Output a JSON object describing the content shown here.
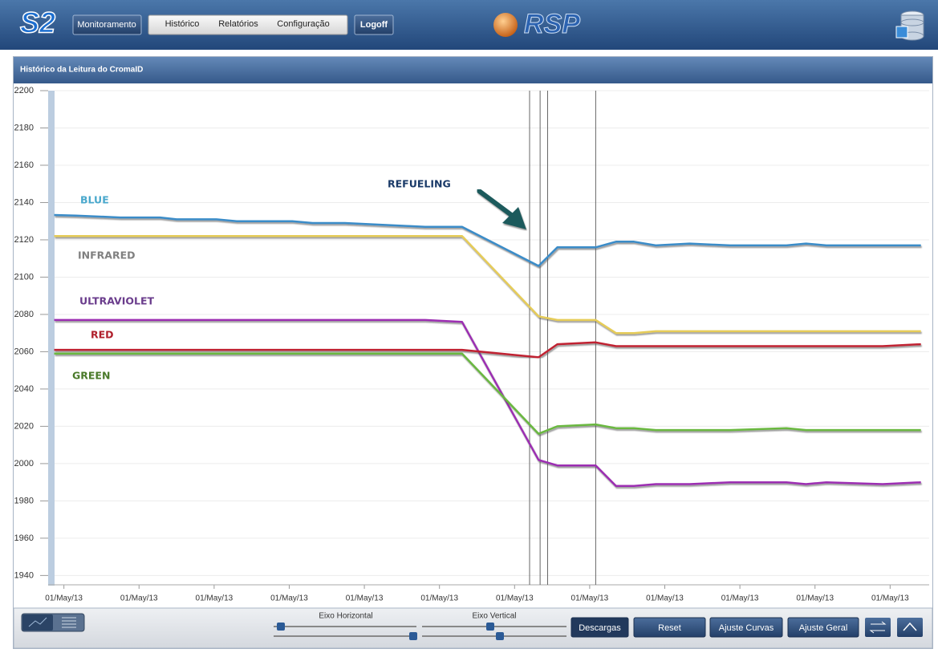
{
  "header": {
    "logo": "S2",
    "nav": [
      "Monitoramento",
      "Histórico",
      "Relatórios",
      "Configuração",
      "Logoff"
    ],
    "brand": "RSP"
  },
  "panel": {
    "title": "Histórico da Leitura do CromaID"
  },
  "chart_data": {
    "type": "line",
    "annotation": "REFUELING",
    "x": [
      -0.13,
      0.16,
      0.75,
      1.28,
      1.5,
      2.03,
      2.3,
      3.04,
      3.31,
      3.74,
      4.27,
      4.81,
      5.3,
      6.32,
      6.57,
      7.08,
      7.35,
      7.59,
      7.88,
      8.33,
      8.87,
      9.62,
      9.88,
      10.15,
      10.9,
      11.41
    ],
    "series": [
      {
        "name": "BLUE",
        "color": "#3a8cc8",
        "label_color": "#4aa8cc",
        "values": [
          2133.3,
          2133,
          2132,
          2132,
          2131,
          2131,
          2130,
          2130,
          2129,
          2129,
          2128,
          2127,
          2127,
          2106,
          2116,
          2116,
          2119,
          2119,
          2117,
          2118,
          2117,
          2117,
          2118,
          2117,
          2117,
          2117
        ]
      },
      {
        "name": "INFRARED",
        "color": "#e6cc58",
        "label_color": "#808080",
        "values": [
          2122,
          2122,
          2122,
          2122,
          2122,
          2122,
          2122,
          2122,
          2122,
          2122,
          2122,
          2122,
          2122,
          2079,
          2077,
          2077,
          2070,
          2070,
          2071,
          2071,
          2071,
          2071,
          2071,
          2071,
          2071,
          2071
        ]
      },
      {
        "name": "ULTRAVIOLET",
        "color": "#9c2fb2",
        "label_color": "#6a3c8c",
        "values": [
          2077,
          2077,
          2077,
          2077,
          2077,
          2077,
          2077,
          2077,
          2077,
          2077,
          2077,
          2077,
          2076,
          2002,
          1999,
          1999,
          1988,
          1988,
          1989,
          1989,
          1990,
          1990,
          1989,
          1990,
          1989,
          1990
        ]
      },
      {
        "name": "RED",
        "color": "#c02030",
        "label_color": "#b0202c",
        "values": [
          2061,
          2061,
          2061,
          2061,
          2061,
          2061,
          2061,
          2061,
          2061,
          2061,
          2061,
          2061,
          2061,
          2057,
          2064,
          2065,
          2063,
          2063,
          2063,
          2063,
          2063,
          2063,
          2063,
          2063,
          2063,
          2064
        ]
      },
      {
        "name": "GREEN",
        "color": "#6ab840",
        "label_color": "#4a7a2a",
        "values": [
          2059,
          2059,
          2059,
          2059,
          2059,
          2059,
          2059,
          2059,
          2059,
          2059,
          2059,
          2059,
          2059,
          2016,
          2020,
          2021,
          2019,
          2019,
          2018,
          2018,
          2018,
          2019,
          2018,
          2018,
          2018,
          2018
        ]
      }
    ],
    "markers": [
      6.2,
      6.34,
      6.44,
      7.08
    ],
    "xlim": [
      -0.21,
      11.52
    ],
    "xticks": [
      {
        "value": 0,
        "label": "01/May/13"
      },
      {
        "value": 1,
        "label": "01/May/13"
      },
      {
        "value": 2,
        "label": "01/May/13"
      },
      {
        "value": 3,
        "label": "01/May/13"
      },
      {
        "value": 4,
        "label": "01/May/13"
      },
      {
        "value": 5,
        "label": "01/May/13"
      },
      {
        "value": 6,
        "label": "01/May/13"
      },
      {
        "value": 7,
        "label": "01/May/13"
      },
      {
        "value": 8,
        "label": "01/May/13"
      },
      {
        "value": 9,
        "label": "01/May/13"
      },
      {
        "value": 10,
        "label": "01/May/13"
      },
      {
        "value": 11,
        "label": "01/May/13"
      }
    ],
    "ylim": [
      1935,
      2200
    ],
    "yticks": [
      1940,
      1960,
      1980,
      2000,
      2020,
      2040,
      2060,
      2080,
      2100,
      2120,
      2140,
      2160,
      2180,
      2200
    ],
    "grid": true
  },
  "toolbar": {
    "sliders": [
      "Eixo Horizontal",
      "Eixo Vertical"
    ],
    "buttons": [
      "Descargas",
      "Reset",
      "Ajuste Curvas",
      "Ajuste Geral"
    ]
  }
}
